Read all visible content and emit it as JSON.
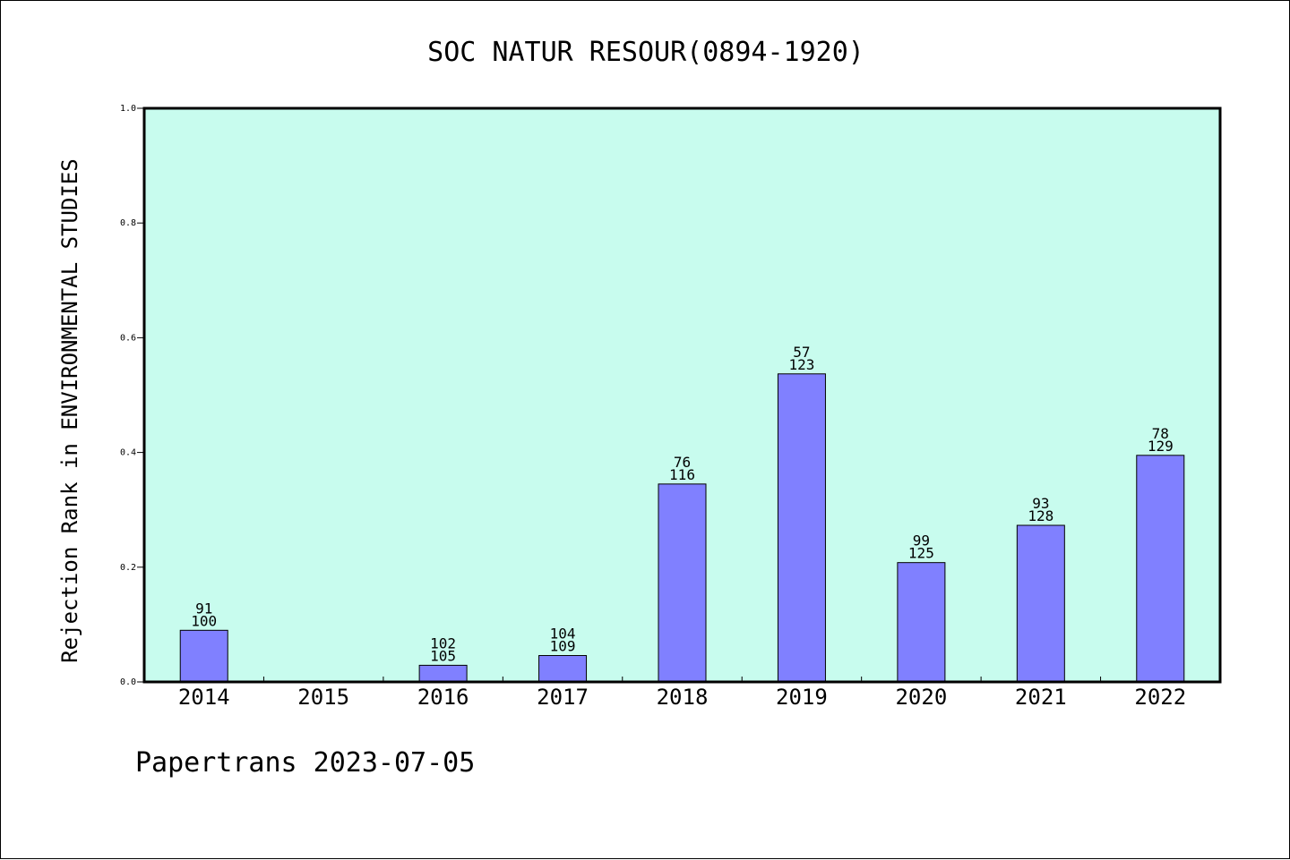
{
  "footer": {
    "text": "Papertrans 2023-07-05"
  },
  "colors": {
    "plot_bg": "#c8fcee",
    "bar_fill": "#8080ff",
    "bar_stroke": "#000000"
  },
  "chart_data": {
    "type": "bar",
    "title": "SOC NATUR RESOUR(0894-1920)",
    "xlabel": "",
    "ylabel": "Rejection Rank in ENVIRONMENTAL STUDIES",
    "ylim": [
      0,
      1.0
    ],
    "yticks": [
      "0.0",
      "0.2",
      "0.4",
      "0.6",
      "0.8",
      "1.0"
    ],
    "grid": false,
    "categories": [
      "2014",
      "2015",
      "2016",
      "2017",
      "2018",
      "2019",
      "2020",
      "2021",
      "2022"
    ],
    "values": [
      0.09,
      null,
      0.029,
      0.046,
      0.345,
      0.537,
      0.208,
      0.273,
      0.395
    ],
    "annotations": [
      [
        "91",
        "100"
      ],
      null,
      [
        "102",
        "105"
      ],
      [
        "104",
        "109"
      ],
      [
        "76",
        "116"
      ],
      [
        "57",
        "123"
      ],
      [
        "99",
        "125"
      ],
      [
        "93",
        "128"
      ],
      [
        "78",
        "129"
      ]
    ]
  }
}
